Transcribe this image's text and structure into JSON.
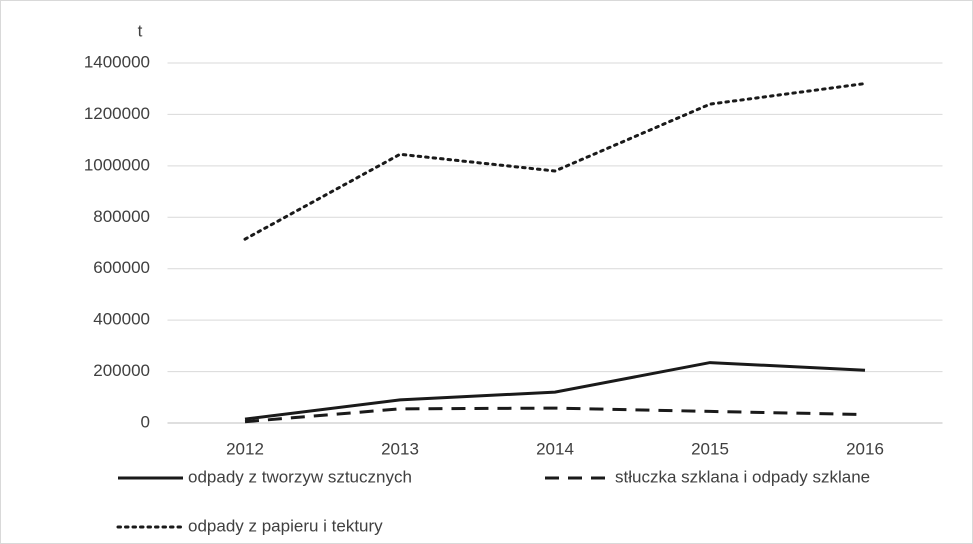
{
  "chart_data": {
    "type": "line",
    "y_label": "t",
    "categories": [
      "2012",
      "2013",
      "2014",
      "2015",
      "2016"
    ],
    "series": [
      {
        "name": "odpady z tworzyw sztucznych",
        "color": "#1a1a1a",
        "dash": "solid",
        "values": [
          15000,
          90000,
          120000,
          235000,
          205000
        ]
      },
      {
        "name": "stłuczka szklana i odpady szklane",
        "color": "#1a1a1a",
        "dash": "dashed",
        "values": [
          5000,
          55000,
          58000,
          45000,
          33000
        ]
      },
      {
        "name": "odpady z papieru i tektury",
        "color": "#1a1a1a",
        "dash": "dotted",
        "values": [
          715000,
          1045000,
          980000,
          1240000,
          1320000
        ]
      }
    ],
    "ylim": [
      0,
      1400000
    ],
    "yticks": [
      0,
      200000,
      400000,
      600000,
      800000,
      1000000,
      1200000,
      1400000
    ],
    "grid": true
  }
}
